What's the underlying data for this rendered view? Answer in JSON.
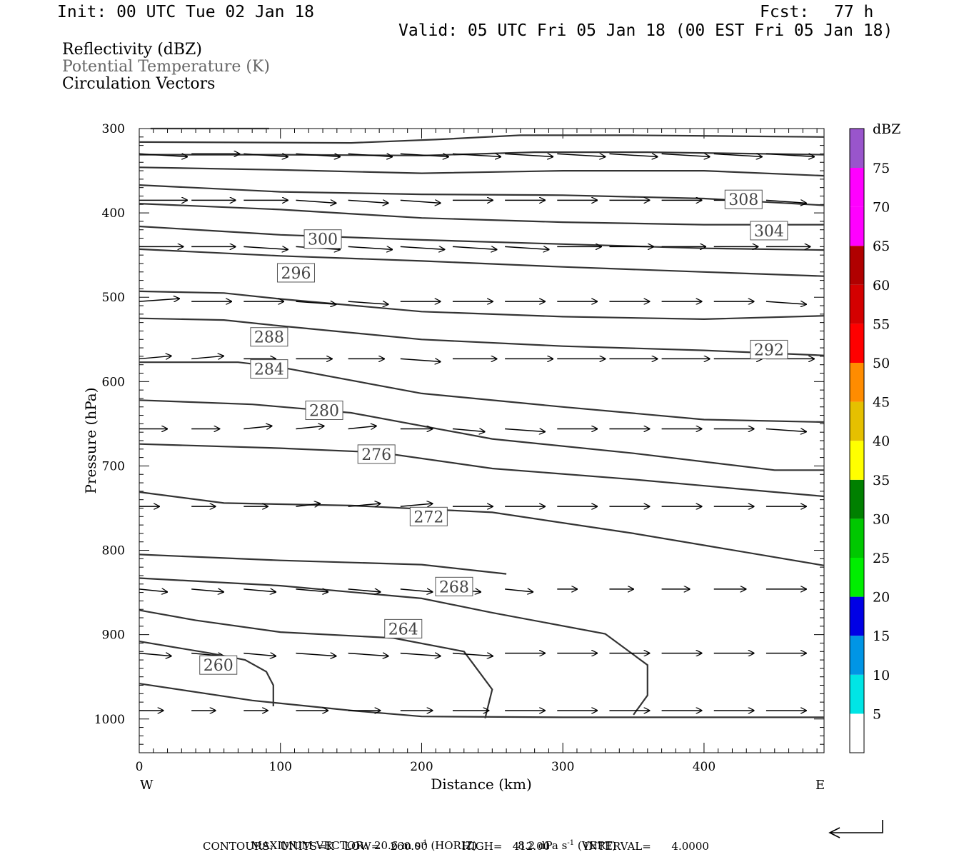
{
  "header": {
    "init": "Init: 00 UTC Tue 02 Jan 18",
    "fcst_label": "Fcst:",
    "fcst_value": "77 h",
    "valid": "Valid: 05 UTC Fri 05 Jan 18 (00 EST Fri 05 Jan 18)"
  },
  "legend_lines": {
    "reflectivity": "Reflectivity (dBZ)",
    "theta": "Potential Temperature (K)",
    "vectors": "Circulation Vectors"
  },
  "colorbar": {
    "unit": "dBZ",
    "levels": [
      "5",
      "10",
      "15",
      "20",
      "25",
      "30",
      "35",
      "40",
      "45",
      "50",
      "55",
      "60",
      "65",
      "70",
      "75"
    ],
    "colors": [
      "#00e5e5",
      "#0095e5",
      "#0000e5",
      "#00ee00",
      "#00c800",
      "#008000",
      "#ffff00",
      "#e5c000",
      "#ff8c00",
      "#ff0000",
      "#d40000",
      "#b00000",
      "#ff00ff",
      "#ff00ff",
      "#9955cc"
    ],
    "top_color": "#ffffff"
  },
  "footer": {
    "max_vector_prefix": "MAXIMUM VECTOR:",
    "max_horiz": "20.6 m s",
    "max_horiz_unit": "(HORIZ)",
    "max_vert": "8.2 dPa s",
    "max_vert_unit": "(VERT)",
    "contours": "CONTOURS:  UNITS=K   LOW=   260.00          HIGH=   412.00          INTERVAL=      4.0000"
  },
  "chart_data": {
    "type": "cross-section",
    "xlabel": "Distance (km)",
    "ylabel": "Pressure (hPa)",
    "xlim": [
      0,
      485
    ],
    "ylim": [
      1040,
      300
    ],
    "x_ticks": [
      "0",
      "100",
      "200",
      "300",
      "400"
    ],
    "y_ticks": [
      "300",
      "400",
      "500",
      "600",
      "700",
      "800",
      "900",
      "1000"
    ],
    "x_end_labels": {
      "left": "W",
      "right": "E"
    },
    "theta_contours": [
      {
        "label": "",
        "points": [
          [
            8,
            300
          ],
          [
            92,
            300
          ]
        ]
      },
      {
        "label": "",
        "points": [
          [
            0,
            316
          ],
          [
            150,
            317
          ],
          [
            210,
            313
          ],
          [
            270,
            308
          ],
          [
            350,
            308
          ],
          [
            420,
            309
          ],
          [
            485,
            310
          ]
        ]
      },
      {
        "label": "",
        "points": [
          [
            0,
            331
          ],
          [
            100,
            331
          ],
          [
            200,
            332
          ],
          [
            280,
            328
          ],
          [
            360,
            328
          ],
          [
            485,
            331
          ]
        ]
      },
      {
        "label": "",
        "points": [
          [
            0,
            346
          ],
          [
            100,
            349
          ],
          [
            200,
            353
          ],
          [
            300,
            350
          ],
          [
            400,
            350
          ],
          [
            485,
            356
          ]
        ]
      },
      {
        "label": "308",
        "label_at": [
          428,
          384
        ],
        "points": [
          [
            0,
            367
          ],
          [
            100,
            375
          ],
          [
            200,
            378
          ],
          [
            300,
            379
          ],
          [
            400,
            383
          ],
          [
            485,
            391
          ]
        ]
      },
      {
        "label": "",
        "points": [
          [
            0,
            389
          ],
          [
            100,
            396
          ],
          [
            200,
            406
          ],
          [
            300,
            411
          ],
          [
            400,
            414
          ],
          [
            485,
            414
          ]
        ]
      },
      {
        "label": "304",
        "label_at": [
          446,
          421
        ],
        "points": [
          [
            0,
            416
          ],
          [
            100,
            426
          ],
          [
            200,
            432
          ],
          [
            300,
            437
          ],
          [
            400,
            442
          ],
          [
            485,
            444
          ]
        ]
      },
      {
        "label": "300",
        "label_at": [
          130,
          431
        ],
        "points": [
          [
            0,
            443
          ],
          [
            100,
            451
          ],
          [
            200,
            457
          ],
          [
            300,
            464
          ],
          [
            400,
            470
          ],
          [
            485,
            475
          ]
        ]
      },
      {
        "label": "296",
        "label_at": [
          111,
          471
        ],
        "points": [
          [
            0,
            493
          ],
          [
            60,
            495
          ],
          [
            100,
            502
          ],
          [
            200,
            517
          ],
          [
            300,
            523
          ],
          [
            400,
            526
          ],
          [
            485,
            522
          ]
        ]
      },
      {
        "label": "292",
        "label_at": [
          446,
          562
        ],
        "points": [
          [
            0,
            525
          ],
          [
            60,
            527
          ],
          [
            100,
            534
          ],
          [
            200,
            550
          ],
          [
            300,
            558
          ],
          [
            400,
            563
          ],
          [
            485,
            569
          ]
        ]
      },
      {
        "label": "288",
        "label_at": [
          92,
          547
        ],
        "points": [
          [
            0,
            577
          ],
          [
            70,
            577
          ],
          [
            100,
            583
          ],
          [
            200,
            614
          ],
          [
            300,
            630
          ],
          [
            400,
            645
          ],
          [
            485,
            648
          ]
        ]
      },
      {
        "label": "284",
        "label_at": [
          92,
          585
        ],
        "points": [
          [
            0,
            622
          ],
          [
            80,
            627
          ],
          [
            150,
            637
          ],
          [
            250,
            668
          ],
          [
            350,
            685
          ],
          [
            450,
            705
          ],
          [
            485,
            705
          ]
        ]
      },
      {
        "label": "280",
        "label_at": [
          131,
          634
        ],
        "points": [
          [
            0,
            674
          ],
          [
            100,
            679
          ],
          [
            170,
            684
          ],
          [
            250,
            703
          ],
          [
            350,
            716
          ],
          [
            450,
            731
          ],
          [
            485,
            736
          ]
        ]
      },
      {
        "label": "276",
        "label_at": [
          168,
          686
        ],
        "points": [
          [
            0,
            731
          ],
          [
            60,
            744
          ],
          [
            150,
            747
          ],
          [
            250,
            755
          ],
          [
            350,
            780
          ],
          [
            400,
            794
          ],
          [
            485,
            818
          ]
        ]
      },
      {
        "label": "272",
        "label_at": [
          205,
          760
        ],
        "points": [
          [
            0,
            805
          ],
          [
            100,
            812
          ],
          [
            200,
            817
          ],
          [
            260,
            828
          ]
        ]
      },
      {
        "label": "268",
        "label_at": [
          223,
          843
        ],
        "points": [
          [
            0,
            833
          ],
          [
            100,
            842
          ],
          [
            200,
            857
          ],
          [
            250,
            874
          ],
          [
            330,
            899
          ],
          [
            360,
            936
          ],
          [
            360,
            972
          ],
          [
            350,
            995
          ]
        ]
      },
      {
        "label": "264",
        "label_at": [
          187,
          893
        ],
        "points": [
          [
            0,
            871
          ],
          [
            40,
            883
          ],
          [
            100,
            897
          ],
          [
            180,
            904
          ],
          [
            230,
            920
          ],
          [
            250,
            965
          ],
          [
            245,
            999
          ]
        ]
      },
      {
        "label": "260",
        "label_at": [
          56,
          936
        ],
        "points": [
          [
            0,
            908
          ],
          [
            50,
            922
          ],
          [
            75,
            930
          ],
          [
            90,
            944
          ],
          [
            95,
            960
          ],
          [
            95,
            985
          ]
        ]
      },
      {
        "label": "",
        "points": [
          [
            0,
            958
          ],
          [
            80,
            978
          ],
          [
            150,
            990
          ],
          [
            200,
            997
          ],
          [
            300,
            998
          ],
          [
            485,
            998
          ]
        ]
      }
    ],
    "vectors": [
      {
        "row_p": 330,
        "xs": [
          0,
          37,
          74,
          111,
          148,
          185,
          222,
          259,
          296,
          333,
          370,
          407,
          444
        ],
        "u": [
          12,
          12,
          11,
          11,
          11,
          12,
          12,
          12,
          12,
          12,
          12,
          12,
          12
        ],
        "w": [
          1,
          0,
          1,
          1,
          1,
          1,
          1,
          1,
          1,
          1,
          1,
          1,
          1
        ]
      },
      {
        "row_p": 385,
        "xs": [
          0,
          37,
          74,
          111,
          148,
          185,
          222,
          259,
          296,
          333,
          370,
          407,
          444
        ],
        "u": [
          12,
          11,
          11,
          10,
          10,
          10,
          10,
          10,
          10,
          10,
          10,
          10,
          10
        ],
        "w": [
          0,
          0,
          0,
          1,
          1,
          1,
          0,
          0,
          0,
          0,
          0,
          0,
          1
        ]
      },
      {
        "row_p": 440,
        "xs": [
          0,
          37,
          74,
          111,
          148,
          185,
          222,
          259,
          296,
          333,
          370,
          407,
          444
        ],
        "u": [
          11,
          11,
          11,
          11,
          11,
          11,
          11,
          11,
          11,
          11,
          11,
          11,
          11
        ],
        "w": [
          0,
          0,
          1,
          1,
          1,
          1,
          1,
          1,
          0,
          0,
          0,
          0,
          0
        ]
      },
      {
        "row_p": 505,
        "xs": [
          0,
          37,
          74,
          111,
          148,
          185,
          222,
          259,
          296,
          333,
          370,
          407,
          444
        ],
        "u": [
          10,
          10,
          10,
          10,
          10,
          10,
          10,
          10,
          10,
          10,
          10,
          10,
          10
        ],
        "w": [
          -1,
          0,
          0,
          1,
          1,
          0,
          0,
          0,
          0,
          0,
          0,
          0,
          1
        ]
      },
      {
        "row_p": 573,
        "xs": [
          0,
          37,
          74,
          111,
          148,
          185,
          222,
          259,
          296,
          333,
          370,
          407,
          444
        ],
        "u": [
          8,
          8,
          8,
          9,
          9,
          10,
          11,
          12,
          12,
          12,
          12,
          12,
          12
        ],
        "w": [
          -1,
          -1,
          0,
          0,
          0,
          1,
          0,
          0,
          0,
          0,
          0,
          0,
          0
        ]
      },
      {
        "row_p": 656,
        "xs": [
          0,
          37,
          74,
          111,
          148,
          185,
          222,
          259,
          296,
          333,
          370,
          407,
          444
        ],
        "u": [
          7,
          7,
          7,
          7,
          7,
          8,
          8,
          10,
          10,
          10,
          10,
          10,
          10
        ],
        "w": [
          0,
          0,
          -1,
          -1,
          -1,
          0,
          1,
          1,
          0,
          0,
          0,
          0,
          1
        ]
      },
      {
        "row_p": 748,
        "xs": [
          0,
          37,
          74,
          111,
          148,
          185,
          222,
          259,
          296,
          333,
          370,
          407,
          444
        ],
        "u": [
          5,
          6,
          6,
          6,
          8,
          8,
          10,
          10,
          10,
          10,
          10,
          10,
          10
        ],
        "w": [
          0,
          0,
          0,
          -1,
          -1,
          -1,
          0,
          0,
          0,
          0,
          0,
          0,
          0
        ]
      },
      {
        "row_p": 846,
        "xs": [
          0,
          37,
          74,
          111,
          148,
          185,
          222,
          259,
          296,
          333,
          370,
          407,
          444
        ],
        "u": [
          7,
          8,
          8,
          8,
          8,
          8,
          7,
          7,
          5,
          6,
          7,
          8,
          10
        ],
        "w": [
          1,
          1,
          1,
          1,
          1,
          1,
          1,
          1,
          0,
          0,
          0,
          0,
          0
        ]
      },
      {
        "row_p": 922,
        "xs": [
          0,
          37,
          74,
          111,
          148,
          185,
          222,
          259,
          296,
          333,
          370,
          407,
          444
        ],
        "u": [
          8,
          8,
          8,
          10,
          10,
          10,
          10,
          10,
          10,
          10,
          10,
          10,
          10
        ],
        "w": [
          1,
          1,
          1,
          1,
          1,
          1,
          1,
          0,
          0,
          0,
          0,
          0,
          0
        ]
      },
      {
        "row_p": 990,
        "xs": [
          0,
          37,
          74,
          111,
          148,
          185,
          222,
          259,
          296,
          333,
          370,
          407,
          444
        ],
        "u": [
          6,
          6,
          6,
          8,
          8,
          8,
          9,
          10,
          10,
          10,
          10,
          10,
          10
        ],
        "w": [
          0,
          0,
          0,
          0,
          0,
          0,
          0,
          0,
          0,
          0,
          0,
          0,
          0
        ]
      }
    ]
  }
}
